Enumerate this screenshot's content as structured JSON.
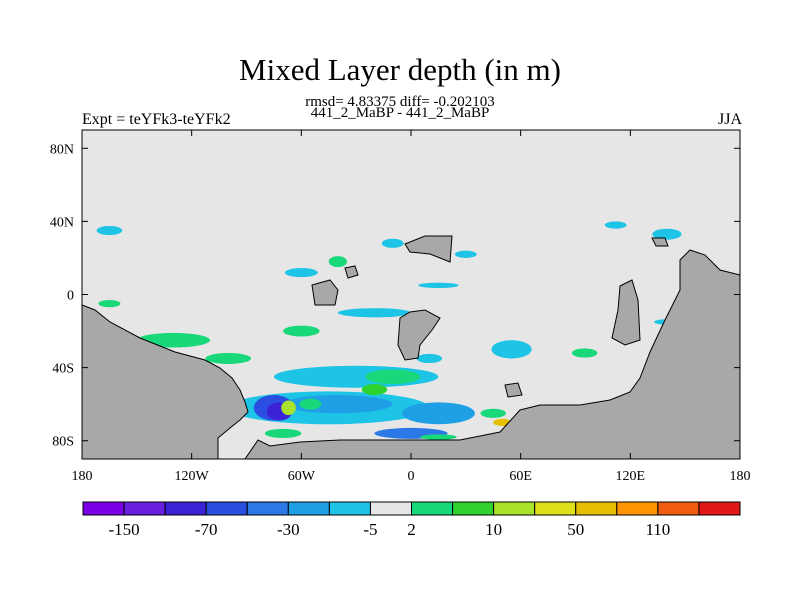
{
  "chart_data": {
    "type": "heatmap",
    "title": "Mixed Layer depth (in m)",
    "subtitle_stats": "rmsd= 4.83375 diff= -0.202103",
    "subtitle_runs": "441_2_MaBP - 441_2_MaBP",
    "left_label": "Expt = teYFk3-teYFk2",
    "right_label": "JJA",
    "x_ticks": [
      "180",
      "120W",
      "60W",
      "0",
      "60E",
      "120E",
      "180"
    ],
    "x_tick_values": [
      -180,
      -120,
      -60,
      0,
      60,
      120,
      180
    ],
    "y_ticks": [
      "80N",
      "40N",
      "0",
      "40S",
      "80S"
    ],
    "y_tick_values": [
      80,
      40,
      0,
      -40,
      -80
    ],
    "xlim": [
      -180,
      180
    ],
    "ylim": [
      -90,
      90
    ],
    "colorbar": {
      "colors": [
        "#7a00e6",
        "#6a1fe0",
        "#3b22d6",
        "#2a4fe0",
        "#2b78e6",
        "#1fa0e6",
        "#1ec4e6",
        "#e6e6e6",
        "#19d87a",
        "#2fd12f",
        "#a9e22a",
        "#e0e01a",
        "#e6c000",
        "#ff9500",
        "#f05d10",
        "#e01818"
      ],
      "labels": [
        "-150",
        "-70",
        "-30",
        "-5",
        "2",
        "10",
        "50",
        "110"
      ],
      "label_after_box": [
        1,
        3,
        5,
        7,
        8,
        10,
        12,
        14
      ]
    },
    "land_color": "#a8a8a8",
    "ocean_background_color": "#e6e6e6",
    "anomaly_regions": [
      {
        "lon": -165,
        "lat": 35,
        "w": 14,
        "h": 5,
        "color": "#1ec4e6"
      },
      {
        "lon": 112,
        "lat": 38,
        "w": 12,
        "h": 4,
        "color": "#1ec4e6"
      },
      {
        "lon": 140,
        "lat": 33,
        "w": 16,
        "h": 6,
        "color": "#1ec4e6"
      },
      {
        "lon": -10,
        "lat": 28,
        "w": 12,
        "h": 5,
        "color": "#1ec4e6"
      },
      {
        "lon": 10,
        "lat": 28,
        "w": 8,
        "h": 6,
        "color": "#2fd12f"
      },
      {
        "lon": -40,
        "lat": 18,
        "w": 10,
        "h": 6,
        "color": "#19d87a"
      },
      {
        "lon": 30,
        "lat": 22,
        "w": 12,
        "h": 4,
        "color": "#1ec4e6"
      },
      {
        "lon": -60,
        "lat": 12,
        "w": 18,
        "h": 5,
        "color": "#1ec4e6"
      },
      {
        "lon": 15,
        "lat": 5,
        "w": 22,
        "h": 3,
        "color": "#1ec4e6"
      },
      {
        "lon": -20,
        "lat": -10,
        "w": 40,
        "h": 5,
        "color": "#1ec4e6"
      },
      {
        "lon": -60,
        "lat": -20,
        "w": 20,
        "h": 6,
        "color": "#19d87a"
      },
      {
        "lon": 55,
        "lat": -30,
        "w": 22,
        "h": 10,
        "color": "#1ec4e6"
      },
      {
        "lon": 10,
        "lat": -35,
        "w": 14,
        "h": 5,
        "color": "#1ec4e6"
      },
      {
        "lon": 95,
        "lat": -32,
        "w": 14,
        "h": 5,
        "color": "#19d87a"
      },
      {
        "lon": 140,
        "lat": -15,
        "w": 14,
        "h": 3,
        "color": "#1ec4e6"
      },
      {
        "lon": -165,
        "lat": -5,
        "w": 12,
        "h": 4,
        "color": "#19d87a"
      },
      {
        "lon": -130,
        "lat": -25,
        "w": 40,
        "h": 8,
        "color": "#19d87a"
      },
      {
        "lon": -100,
        "lat": -35,
        "w": 25,
        "h": 6,
        "color": "#19d87a"
      },
      {
        "lon": -30,
        "lat": -45,
        "w": 90,
        "h": 12,
        "color": "#1ec4e6"
      },
      {
        "lon": -10,
        "lat": -45,
        "w": 30,
        "h": 8,
        "color": "#19d87a"
      },
      {
        "lon": -45,
        "lat": -62,
        "w": 110,
        "h": 18,
        "color": "#1ec4e6"
      },
      {
        "lon": -40,
        "lat": -60,
        "w": 60,
        "h": 10,
        "color": "#1fa0e6"
      },
      {
        "lon": 15,
        "lat": -65,
        "w": 40,
        "h": 12,
        "color": "#1fa0e6"
      },
      {
        "lon": -75,
        "lat": -62,
        "w": 22,
        "h": 14,
        "color": "#2a4fe0"
      },
      {
        "lon": -72,
        "lat": -64,
        "w": 14,
        "h": 10,
        "color": "#3b22d6"
      },
      {
        "lon": -67,
        "lat": -62,
        "w": 8,
        "h": 8,
        "color": "#a9e22a"
      },
      {
        "lon": -55,
        "lat": -60,
        "w": 12,
        "h": 6,
        "color": "#19d87a"
      },
      {
        "lon": -20,
        "lat": -52,
        "w": 14,
        "h": 6,
        "color": "#2fd12f"
      },
      {
        "lon": 45,
        "lat": -65,
        "w": 14,
        "h": 5,
        "color": "#19d87a"
      },
      {
        "lon": 50,
        "lat": -70,
        "w": 10,
        "h": 4,
        "color": "#e6c000"
      },
      {
        "lon": -70,
        "lat": -76,
        "w": 20,
        "h": 5,
        "color": "#19d87a"
      },
      {
        "lon": 0,
        "lat": -76,
        "w": 40,
        "h": 6,
        "color": "#2b78e6"
      },
      {
        "lon": 15,
        "lat": -78,
        "w": 20,
        "h": 3,
        "color": "#19d87a"
      }
    ]
  }
}
